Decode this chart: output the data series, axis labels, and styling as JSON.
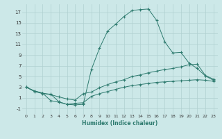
{
  "xlabel": "Humidex (Indice chaleur)",
  "bg_color": "#cce8e8",
  "grid_color": "#b0d0d0",
  "line_color": "#2d7a6e",
  "xlim": [
    -0.5,
    23.5
  ],
  "ylim": [
    -2.0,
    18.5
  ],
  "xticks": [
    0,
    1,
    2,
    3,
    4,
    5,
    6,
    7,
    8,
    9,
    10,
    11,
    12,
    13,
    14,
    15,
    16,
    17,
    18,
    19,
    20,
    21,
    22,
    23
  ],
  "yticks": [
    -1,
    1,
    3,
    5,
    7,
    9,
    11,
    13,
    15,
    17
  ],
  "curve_max_x": [
    0,
    1,
    2,
    3,
    4,
    5,
    6,
    7,
    8,
    9,
    10,
    11,
    12,
    13,
    14,
    15,
    16,
    17,
    18,
    19,
    20,
    21,
    22,
    23
  ],
  "curve_max_y": [
    3.0,
    2.2,
    1.8,
    1.7,
    0.3,
    -0.2,
    -0.3,
    -0.2,
    6.3,
    10.3,
    13.5,
    14.8,
    16.2,
    17.3,
    17.5,
    17.6,
    15.5,
    11.5,
    9.4,
    9.5,
    7.5,
    6.5,
    5.1,
    4.3
  ],
  "curve_mid_x": [
    0,
    1,
    2,
    3,
    4,
    5,
    6,
    7,
    8,
    9,
    10,
    11,
    12,
    13,
    14,
    15,
    16,
    17,
    18,
    19,
    20,
    21,
    22,
    23
  ],
  "curve_mid_y": [
    3.0,
    2.3,
    1.9,
    1.6,
    1.2,
    0.8,
    0.6,
    1.8,
    2.1,
    2.9,
    3.5,
    4.0,
    4.4,
    5.0,
    5.3,
    5.7,
    6.0,
    6.3,
    6.5,
    6.8,
    7.2,
    7.3,
    5.2,
    4.5
  ],
  "curve_min_x": [
    0,
    1,
    2,
    3,
    4,
    5,
    6,
    7,
    8,
    9,
    10,
    11,
    12,
    13,
    14,
    15,
    16,
    17,
    18,
    19,
    20,
    21,
    22,
    23
  ],
  "curve_min_y": [
    3.0,
    2.3,
    1.9,
    0.5,
    0.2,
    -0.2,
    0.0,
    0.1,
    1.3,
    1.8,
    2.2,
    2.6,
    3.0,
    3.3,
    3.5,
    3.7,
    3.9,
    4.0,
    4.1,
    4.2,
    4.3,
    4.4,
    4.3,
    4.1
  ]
}
